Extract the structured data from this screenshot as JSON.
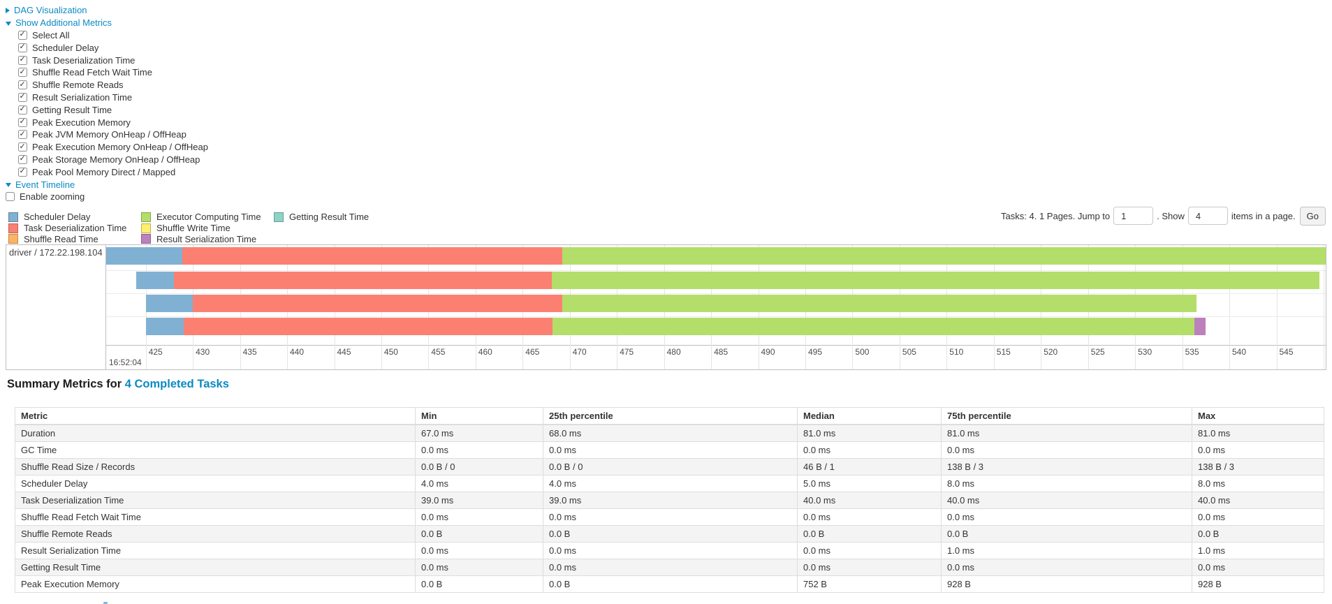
{
  "toggles": {
    "links": {
      "dag": {
        "label": "DAG Visualization",
        "arrow": "right"
      },
      "additional_metrics": {
        "label": "Show Additional Metrics",
        "arrow": "down"
      },
      "event_timeline": {
        "label": "Event Timeline",
        "arrow": "down"
      }
    },
    "metric_checkboxes": [
      {
        "label": "Select All",
        "checked": true
      },
      {
        "label": "Scheduler Delay",
        "checked": true
      },
      {
        "label": "Task Deserialization Time",
        "checked": true
      },
      {
        "label": "Shuffle Read Fetch Wait Time",
        "checked": true
      },
      {
        "label": "Shuffle Remote Reads",
        "checked": true
      },
      {
        "label": "Result Serialization Time",
        "checked": true
      },
      {
        "label": "Getting Result Time",
        "checked": true
      },
      {
        "label": "Peak Execution Memory",
        "checked": true
      },
      {
        "label": "Peak JVM Memory OnHeap / OffHeap",
        "checked": true
      },
      {
        "label": "Peak Execution Memory OnHeap / OffHeap",
        "checked": true
      },
      {
        "label": "Peak Storage Memory OnHeap / OffHeap",
        "checked": true
      },
      {
        "label": "Peak Pool Memory Direct / Mapped",
        "checked": true
      }
    ],
    "enable_zooming": {
      "label": "Enable zooming",
      "checked": false
    }
  },
  "pagination": {
    "summary_text": "Tasks: 4. 1 Pages. Jump to",
    "jump_value": "1",
    "show_label": ". Show",
    "show_value": "4",
    "suffix_text": "items in a page.",
    "go_label": "Go"
  },
  "legend": {
    "columns": [
      [
        {
          "label": "Scheduler Delay",
          "phase": "scheduler_delay"
        },
        {
          "label": "Task Deserialization Time",
          "phase": "task_deserialization"
        },
        {
          "label": "Shuffle Read Time",
          "phase": "shuffle_read"
        }
      ],
      [
        {
          "label": "Executor Computing Time",
          "phase": "executor_computing"
        },
        {
          "label": "Shuffle Write Time",
          "phase": "shuffle_write"
        },
        {
          "label": "Result Serialization Time",
          "phase": "result_serialization"
        }
      ],
      [
        {
          "label": "Getting Result Time",
          "phase": "getting_result"
        }
      ]
    ]
  },
  "chart_data": {
    "type": "timeline",
    "title": "Event Timeline",
    "row_label": "driver / 172.22.198.104",
    "time_label": "16:52:04",
    "unit": "milliseconds within second 16:52:04",
    "axis": {
      "start": 420.8,
      "end": 550.5,
      "tick_min": 425,
      "tick_max": 550,
      "tick_step": 5
    },
    "colors": {
      "scheduler_delay": "#80B1D3",
      "task_deserialization": "#FB8072",
      "shuffle_read": "#FDB462",
      "executor_computing": "#B3DE69",
      "shuffle_write": "#FFED6F",
      "result_serialization": "#BC80BD",
      "getting_result": "#8DD3C7"
    },
    "tasks": [
      {
        "name": "task-0",
        "start": 420.8,
        "segments": [
          {
            "phase": "scheduler_delay",
            "end": 428.9
          },
          {
            "phase": "task_deserialization",
            "end": 469.2
          },
          {
            "phase": "executor_computing",
            "end": 550.5
          }
        ]
      },
      {
        "name": "task-1",
        "start": 424.0,
        "segments": [
          {
            "phase": "scheduler_delay",
            "end": 428.0
          },
          {
            "phase": "task_deserialization",
            "end": 468.1
          },
          {
            "phase": "executor_computing",
            "end": 549.6
          }
        ]
      },
      {
        "name": "task-2",
        "start": 425.0,
        "segments": [
          {
            "phase": "scheduler_delay",
            "end": 430.0
          },
          {
            "phase": "task_deserialization",
            "end": 469.2
          },
          {
            "phase": "executor_computing",
            "end": 536.5
          }
        ]
      },
      {
        "name": "task-3",
        "start": 425.0,
        "segments": [
          {
            "phase": "scheduler_delay",
            "end": 429.0
          },
          {
            "phase": "task_deserialization",
            "end": 468.2
          },
          {
            "phase": "executor_computing",
            "end": 536.3
          },
          {
            "phase": "result_serialization",
            "end": 537.5
          }
        ]
      }
    ]
  },
  "summary": {
    "heading_prefix": "Summary Metrics for",
    "completed_link": "4 Completed Tasks",
    "table": {
      "headers": [
        "Metric",
        "Min",
        "25th percentile",
        "Median",
        "75th percentile",
        "Max"
      ],
      "rows": [
        [
          "Duration",
          "67.0 ms",
          "68.0 ms",
          "81.0 ms",
          "81.0 ms",
          "81.0 ms"
        ],
        [
          "GC Time",
          "0.0 ms",
          "0.0 ms",
          "0.0 ms",
          "0.0 ms",
          "0.0 ms"
        ],
        [
          "Shuffle Read Size / Records",
          "0.0 B / 0",
          "0.0 B / 0",
          "46 B / 1",
          "138 B / 3",
          "138 B / 3"
        ],
        [
          "Scheduler Delay",
          "4.0 ms",
          "4.0 ms",
          "5.0 ms",
          "8.0 ms",
          "8.0 ms"
        ],
        [
          "Task Deserialization Time",
          "39.0 ms",
          "39.0 ms",
          "40.0 ms",
          "40.0 ms",
          "40.0 ms"
        ],
        [
          "Shuffle Read Fetch Wait Time",
          "0.0 ms",
          "0.0 ms",
          "0.0 ms",
          "0.0 ms",
          "0.0 ms"
        ],
        [
          "Shuffle Remote Reads",
          "0.0 B",
          "0.0 B",
          "0.0 B",
          "0.0 B",
          "0.0 B"
        ],
        [
          "Result Serialization Time",
          "0.0 ms",
          "0.0 ms",
          "0.0 ms",
          "1.0 ms",
          "1.0 ms"
        ],
        [
          "Getting Result Time",
          "0.0 ms",
          "0.0 ms",
          "0.0 ms",
          "0.0 ms",
          "0.0 ms"
        ],
        [
          "Peak Execution Memory",
          "0.0 B",
          "0.0 B",
          "752 B",
          "928 B",
          "928 B"
        ]
      ]
    }
  }
}
